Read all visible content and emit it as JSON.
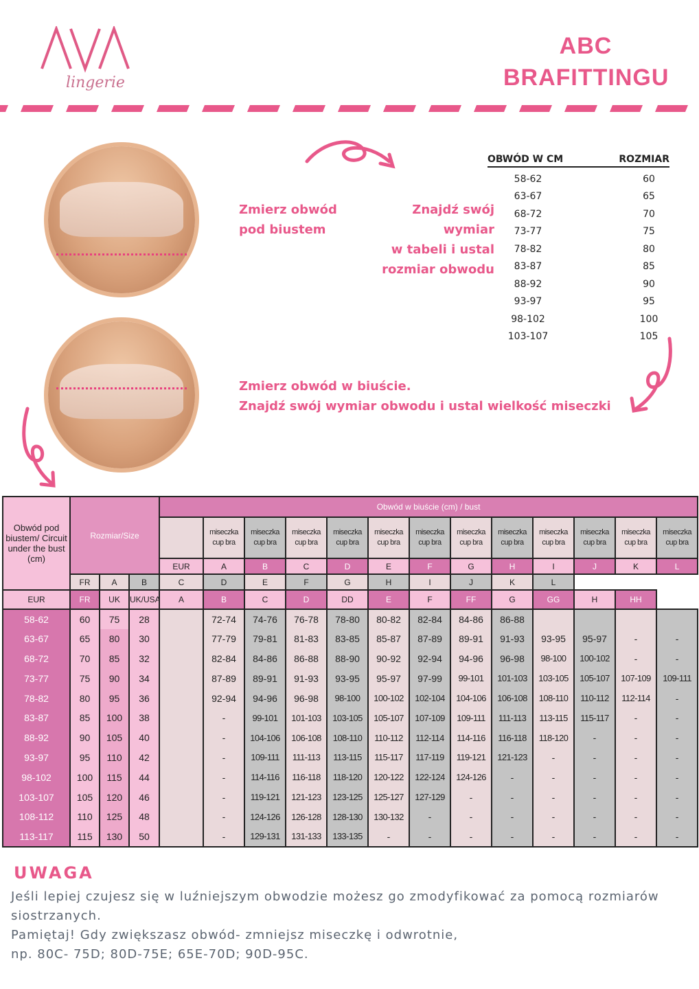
{
  "brand": {
    "logo_text": "AVA",
    "logo_subtitle": "lingerie"
  },
  "header": {
    "title_line1": "ABC",
    "title_line2": "BRAFITTINGU"
  },
  "colors": {
    "accent": "#e8588a",
    "table_magenta": "#d777ad",
    "table_light_pink": "#f6c1da",
    "table_pale": "#ead9db",
    "table_grey": "#c4c4c4"
  },
  "step1": {
    "measure": [
      "Zmierz obwód",
      "pod biustem"
    ],
    "find": [
      "Znajdź swój wymiar",
      "w tabeli i ustal",
      "rozmiar obwodu"
    ]
  },
  "step2": {
    "lines": [
      "Zmierz obwód w biuście.",
      "Znajdź swój wymiar obwodu i ustal wielkość miseczki"
    ]
  },
  "band_table": {
    "headers": [
      "OBWÓD W CM",
      "ROZMIAR"
    ],
    "rows": [
      [
        "58-62",
        "60"
      ],
      [
        "63-67",
        "65"
      ],
      [
        "68-72",
        "70"
      ],
      [
        "73-77",
        "75"
      ],
      [
        "78-82",
        "80"
      ],
      [
        "83-87",
        "85"
      ],
      [
        "88-92",
        "90"
      ],
      [
        "93-97",
        "95"
      ],
      [
        "98-102",
        "100"
      ],
      [
        "103-107",
        "105"
      ]
    ]
  },
  "cup_table": {
    "underbust_header": "Obwód pod biustem/ Circuit under the bust (cm)",
    "size_header": "Rozmiar/Size",
    "bust_header": "Obwód w biuście (cm) / bust",
    "cup_label": [
      "miseczka",
      "cup bra"
    ],
    "size_systems": [
      "EUR",
      "FR",
      "UK"
    ],
    "cup_systems": {
      "EUR": [
        "A",
        "B",
        "C",
        "D",
        "E",
        "F",
        "G",
        "H",
        "I",
        "J",
        "K",
        "L"
      ],
      "FR": [
        "A",
        "B",
        "C",
        "D",
        "E",
        "F",
        "G",
        "H",
        "I",
        "J",
        "K",
        "L"
      ],
      "UK/USA": [
        "A",
        "B",
        "C",
        "D",
        "DD",
        "E",
        "F",
        "FF",
        "G",
        "GG",
        "H",
        "HH"
      ]
    },
    "rows": [
      {
        "underbust": "58-62",
        "eur": "60",
        "fr": "75",
        "uk": "28",
        "bust": [
          "72-74",
          "74-76",
          "76-78",
          "78-80",
          "80-82",
          "82-84",
          "84-86",
          "86-88",
          "",
          "",
          "",
          ""
        ]
      },
      {
        "underbust": "63-67",
        "eur": "65",
        "fr": "80",
        "uk": "30",
        "bust": [
          "77-79",
          "79-81",
          "81-83",
          "83-85",
          "85-87",
          "87-89",
          "89-91",
          "91-93",
          "93-95",
          "95-97",
          "-",
          "-"
        ]
      },
      {
        "underbust": "68-72",
        "eur": "70",
        "fr": "85",
        "uk": "32",
        "bust": [
          "82-84",
          "84-86",
          "86-88",
          "88-90",
          "90-92",
          "92-94",
          "94-96",
          "96-98",
          "98-100",
          "100-102",
          "-",
          "-"
        ]
      },
      {
        "underbust": "73-77",
        "eur": "75",
        "fr": "90",
        "uk": "34",
        "bust": [
          "87-89",
          "89-91",
          "91-93",
          "93-95",
          "95-97",
          "97-99",
          "99-101",
          "101-103",
          "103-105",
          "105-107",
          "107-109",
          "109-111"
        ]
      },
      {
        "underbust": "78-82",
        "eur": "80",
        "fr": "95",
        "uk": "36",
        "bust": [
          "92-94",
          "94-96",
          "96-98",
          "98-100",
          "100-102",
          "102-104",
          "104-106",
          "106-108",
          "108-110",
          "110-112",
          "112-114",
          "-"
        ]
      },
      {
        "underbust": "83-87",
        "eur": "85",
        "fr": "100",
        "uk": "38",
        "bust": [
          "-",
          "99-101",
          "101-103",
          "103-105",
          "105-107",
          "107-109",
          "109-111",
          "111-113",
          "113-115",
          "115-117",
          "-",
          "-"
        ]
      },
      {
        "underbust": "88-92",
        "eur": "90",
        "fr": "105",
        "uk": "40",
        "bust": [
          "-",
          "104-106",
          "106-108",
          "108-110",
          "110-112",
          "112-114",
          "114-116",
          "116-118",
          "118-120",
          "-",
          "-",
          "-"
        ]
      },
      {
        "underbust": "93-97",
        "eur": "95",
        "fr": "110",
        "uk": "42",
        "bust": [
          "-",
          "109-111",
          "111-113",
          "113-115",
          "115-117",
          "117-119",
          "119-121",
          "121-123",
          "-",
          "-",
          "-",
          "-"
        ]
      },
      {
        "underbust": "98-102",
        "eur": "100",
        "fr": "115",
        "uk": "44",
        "bust": [
          "-",
          "114-116",
          "116-118",
          "118-120",
          "120-122",
          "122-124",
          "124-126",
          "-",
          "-",
          "-",
          "-",
          "-"
        ]
      },
      {
        "underbust": "103-107",
        "eur": "105",
        "fr": "120",
        "uk": "46",
        "bust": [
          "-",
          "119-121",
          "121-123",
          "123-125",
          "125-127",
          "127-129",
          "-",
          "-",
          "-",
          "-",
          "-",
          "-"
        ]
      },
      {
        "underbust": "108-112",
        "eur": "110",
        "fr": "125",
        "uk": "48",
        "bust": [
          "-",
          "124-126",
          "126-128",
          "128-130",
          "130-132",
          "-",
          "-",
          "-",
          "-",
          "-",
          "-",
          "-"
        ]
      },
      {
        "underbust": "113-117",
        "eur": "115",
        "fr": "130",
        "uk": "50",
        "bust": [
          "-",
          "129-131",
          "131-133",
          "133-135",
          "-",
          "-",
          "-",
          "-",
          "-",
          "-",
          "-",
          "-"
        ]
      }
    ]
  },
  "note": {
    "heading": "UWAGA",
    "lines": [
      "Jeśli lepiej czujesz się w luźniejszym obwodzie możesz go zmodyfikować za pomocą rozmiarów siostrzanych.",
      "Pamiętaj! Gdy zwiększasz obwód- zmniejsz miseczkę i odwrotnie,",
      "np. 80C- 75D; 80D-75E; 65E-70D; 90D-95C."
    ]
  }
}
